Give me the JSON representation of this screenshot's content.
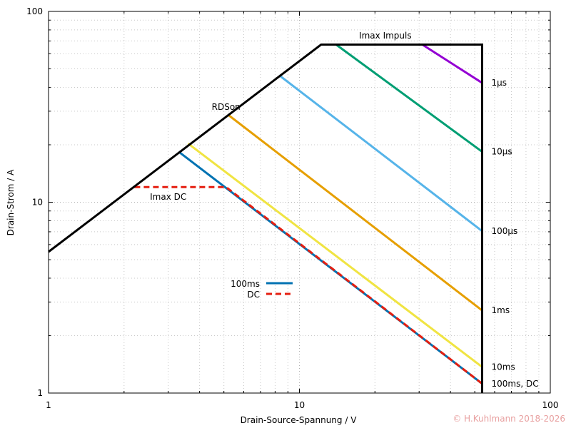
{
  "chart_data": {
    "type": "line",
    "scale": "log-log",
    "grid": true,
    "legend_placement": "center-left",
    "xlabel": "Drain-Source-Spannung / V",
    "ylabel": "Drain-Strom / A",
    "xlim": [
      1,
      100
    ],
    "ylim": [
      1,
      100
    ],
    "x_ticks": [
      "1",
      "10",
      "100"
    ],
    "y_ticks": [
      "1",
      "10",
      "100"
    ],
    "boundary": {
      "color": "#000000",
      "points": [
        [
          1,
          5.5
        ],
        [
          12.2,
          67
        ],
        [
          53.5,
          67
        ],
        [
          53.5,
          1
        ]
      ]
    },
    "series": [
      {
        "name": "1µs",
        "color": "#9400d3",
        "points": [
          [
            30.9,
            67
          ],
          [
            53.5,
            42.2
          ]
        ]
      },
      {
        "name": "10µs",
        "color": "#009e73",
        "points": [
          [
            14,
            67
          ],
          [
            53.5,
            18.4
          ]
        ]
      },
      {
        "name": "100µs",
        "color": "#56b4e9",
        "points": [
          [
            8.3,
            46.3
          ],
          [
            53.5,
            7.06
          ]
        ]
      },
      {
        "name": "1ms",
        "color": "#e69f00",
        "points": [
          [
            5.2,
            28.7
          ],
          [
            53.5,
            2.71
          ]
        ]
      },
      {
        "name": "10ms",
        "color": "#f0e442",
        "points": [
          [
            3.6,
            20.3
          ],
          [
            53.5,
            1.37
          ]
        ]
      },
      {
        "name": "100ms",
        "color": "#0072b2",
        "points": [
          [
            3.3,
            18.4
          ],
          [
            53.5,
            1.12
          ]
        ]
      },
      {
        "name": "DC",
        "color": "#e51e10",
        "dashed": true,
        "points": [
          [
            2.2,
            12
          ],
          [
            5.1,
            12
          ],
          [
            53.5,
            1.12
          ]
        ]
      }
    ],
    "annotations": [
      {
        "text": "Imax Impuls",
        "x": 22,
        "y": 72
      },
      {
        "text": "RDSon",
        "x": 5.1,
        "y": 30.5
      },
      {
        "text": "Imax DC",
        "x": 3.0,
        "y": 10.3
      }
    ],
    "end_labels": [
      {
        "text": "1µs",
        "y": 42.2
      },
      {
        "text": "10µs",
        "y": 18.4
      },
      {
        "text": "100µs",
        "y": 7.06
      },
      {
        "text": "1ms",
        "y": 2.71
      },
      {
        "text": "10ms",
        "y": 1.37
      },
      {
        "text": "100ms, DC",
        "y": 1.12
      }
    ],
    "legend": [
      {
        "label": "100ms",
        "color": "#0072b2",
        "dashed": false
      },
      {
        "label": "DC",
        "color": "#e51e10",
        "dashed": true
      }
    ]
  },
  "copyright": "© H.Kuhlmann 2018-2026"
}
